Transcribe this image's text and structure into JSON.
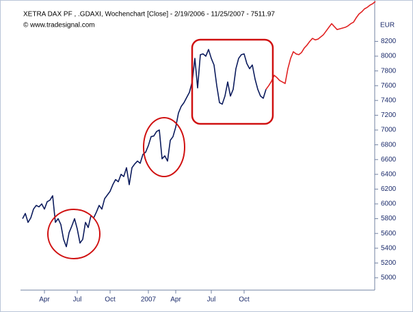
{
  "chart_data": {
    "type": "line",
    "title": "XETRA DAX PF    , .GDAXI, Wochenchart [Close] - 2/19/2006 - 11/25/2007 - 7511.97",
    "subtitle": "© www.tradesignal.com",
    "y_axis_label": "EUR",
    "categories": [
      null,
      null,
      null,
      null,
      null,
      null,
      null,
      null,
      "Apr",
      null,
      null,
      null,
      null,
      null,
      null,
      null,
      null,
      null,
      null,
      null,
      "Jul",
      null,
      null,
      null,
      null,
      null,
      null,
      null,
      null,
      null,
      null,
      null,
      "Oct",
      null,
      null,
      null,
      null,
      null,
      null,
      null,
      null,
      null,
      null,
      null,
      null,
      null,
      "2007",
      null,
      null,
      null,
      null,
      null,
      null,
      null,
      null,
      null,
      "Apr",
      null,
      null,
      null,
      null,
      null,
      null,
      null,
      null,
      null,
      null,
      null,
      null,
      "Jul",
      null,
      null,
      null,
      null,
      null,
      null,
      null,
      null,
      null,
      null,
      null,
      "Oct",
      null,
      null,
      null,
      null,
      null,
      null,
      null,
      null,
      null,
      null,
      null,
      null,
      null,
      null,
      null,
      null,
      null,
      null,
      null,
      null,
      null,
      null,
      null,
      null,
      null,
      null,
      null,
      null,
      null,
      null,
      null,
      null,
      null,
      null,
      null,
      null,
      null,
      null,
      null,
      null,
      null,
      null,
      null,
      null,
      null,
      null,
      null,
      null
    ],
    "series": [
      {
        "color": "#0a1a5c",
        "values": [
          5800,
          5870,
          5750,
          5810,
          5930,
          5980,
          5960,
          6000,
          5930,
          6030,
          6050,
          6110,
          5750,
          5800,
          5720,
          5520,
          5420,
          5610,
          5700,
          5800,
          5660,
          5470,
          5520,
          5750,
          5680,
          5840,
          5810,
          5890,
          5980,
          5930,
          6070,
          6120,
          6170,
          6260,
          6330,
          6300,
          6400,
          6370,
          6490,
          6260,
          6490,
          6540,
          6580,
          6550,
          6670,
          6700,
          6790,
          6910,
          6920,
          6980,
          7000,
          6610,
          6650,
          6580,
          6860,
          6910,
          7040,
          7230,
          7320,
          7370,
          7440,
          7510,
          7650,
          7970,
          7570,
          8020,
          8030,
          8000,
          8090,
          7970,
          7880,
          7600,
          7370,
          7350,
          7460,
          7650,
          7460,
          7550,
          7830,
          7970,
          8020,
          8030,
          7900,
          7830,
          7880,
          7690,
          7550,
          7460,
          7430,
          7550,
          null,
          null,
          null,
          null,
          null,
          null,
          null,
          null,
          null,
          null,
          null,
          null,
          null,
          null,
          null,
          null,
          null,
          null,
          null,
          null,
          null,
          null,
          null,
          null,
          null,
          null,
          null,
          null,
          null,
          null,
          null,
          null,
          null,
          null,
          null,
          null,
          null,
          null,
          null,
          null
        ]
      },
      {
        "color": "#e02020",
        "values": [
          null,
          null,
          null,
          null,
          null,
          null,
          null,
          null,
          null,
          null,
          null,
          null,
          null,
          null,
          null,
          null,
          null,
          null,
          null,
          null,
          null,
          null,
          null,
          null,
          null,
          null,
          null,
          null,
          null,
          null,
          null,
          null,
          null,
          null,
          null,
          null,
          null,
          null,
          null,
          null,
          null,
          null,
          null,
          null,
          null,
          null,
          null,
          null,
          null,
          null,
          null,
          null,
          null,
          null,
          null,
          null,
          null,
          null,
          null,
          null,
          null,
          null,
          null,
          null,
          null,
          null,
          null,
          null,
          null,
          null,
          null,
          null,
          null,
          null,
          null,
          null,
          null,
          null,
          null,
          null,
          null,
          null,
          null,
          null,
          null,
          null,
          null,
          null,
          null,
          7550,
          7600,
          7660,
          7740,
          7710,
          7670,
          7650,
          7630,
          7830,
          7970,
          8060,
          8030,
          8020,
          8050,
          8110,
          8150,
          8200,
          8240,
          8220,
          8230,
          8260,
          8290,
          8340,
          8390,
          8440,
          8400,
          8360,
          8370,
          8380,
          8390,
          8410,
          8440,
          8460,
          8520,
          8570,
          8600,
          8640,
          8660,
          8690,
          8710,
          8740
        ]
      }
    ],
    "ylim": [
      4870,
      8760
    ],
    "yticks": [
      5000,
      5200,
      5400,
      5600,
      5800,
      6000,
      6200,
      6400,
      6600,
      6800,
      7000,
      7200,
      7400,
      7600,
      7800,
      8000,
      8200
    ],
    "y_axis_side": "right"
  }
}
